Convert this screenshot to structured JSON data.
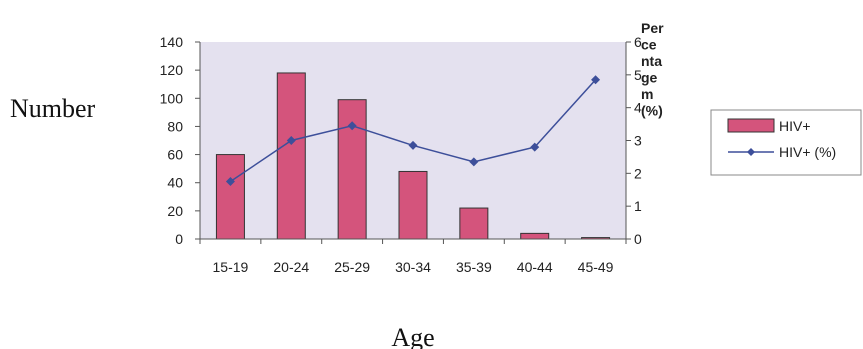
{
  "chart_data": {
    "type": "bar",
    "categories": [
      "15-19",
      "20-24",
      "25-29",
      "30-34",
      "35-39",
      "40-44",
      "45-49"
    ],
    "series": [
      {
        "name": "HIV+",
        "type": "bar",
        "axis": "left",
        "color": "#d4547c",
        "values": [
          60,
          118,
          99,
          48,
          22,
          4,
          1
        ]
      },
      {
        "name": "HIV+ (%)",
        "type": "line",
        "axis": "right",
        "color": "#3d4f9a",
        "values": [
          1.75,
          3.0,
          3.45,
          2.85,
          2.35,
          2.8,
          4.85
        ]
      }
    ],
    "xlabel": "Age",
    "ylabel": "Number",
    "y2label_lines": [
      "Per",
      "ce",
      "nta",
      "ge",
      "m",
      "(%)"
    ],
    "ylim": [
      0,
      140
    ],
    "y2lim": [
      0,
      6
    ],
    "yticks": [
      "0",
      "20",
      "40",
      "60",
      "80",
      "100",
      "120",
      "140"
    ],
    "y2ticks": [
      "0",
      "1",
      "2",
      "3",
      "4",
      "5",
      "6"
    ],
    "plot_bg": "#e4e1ef",
    "legend_position": "right"
  }
}
